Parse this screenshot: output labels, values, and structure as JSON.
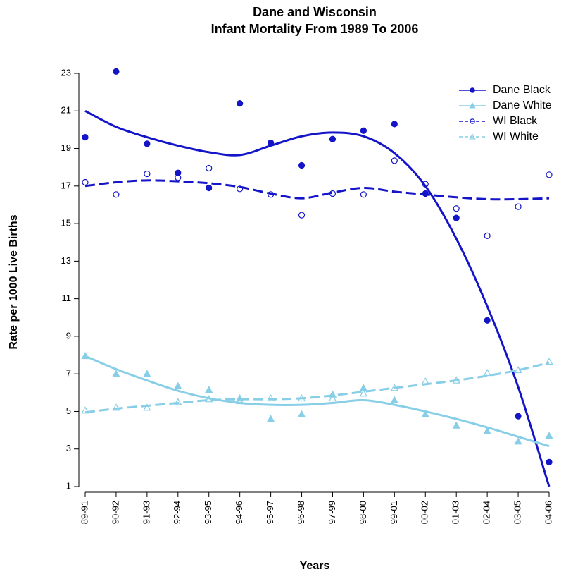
{
  "chart_data": {
    "type": "line",
    "title": [
      "Dane and Wisconsin",
      "Infant Mortality From 1989 To 2006"
    ],
    "x_label": "Years",
    "y_label": "Rate per 1000 Live Births",
    "categories": [
      "89-91",
      "90-92",
      "91-93",
      "92-94",
      "93-95",
      "94-96",
      "95-97",
      "96-98",
      "97-99",
      "98-00",
      "99-01",
      "00-02",
      "01-03",
      "02-04",
      "03-05",
      "04-06"
    ],
    "ylim": [
      1,
      23
    ],
    "yticks": [
      1,
      3,
      5,
      7,
      9,
      11,
      13,
      15,
      17,
      19,
      21,
      23
    ],
    "legend": "top-right",
    "series": [
      {
        "name": "Dane Black",
        "color": "#1414c8",
        "marker": "circle",
        "filled": true,
        "linestyle": "solid",
        "values": [
          19.6,
          23.1,
          19.25,
          17.7,
          16.9,
          21.4,
          19.3,
          18.1,
          19.5,
          19.95,
          20.3,
          16.6,
          15.3,
          9.85,
          4.75,
          2.3
        ],
        "smooth": [
          21.0,
          20.15,
          19.6,
          19.15,
          18.8,
          18.65,
          19.15,
          19.65,
          19.85,
          19.65,
          18.75,
          17.0,
          14.2,
          10.6,
          6.3,
          1.0
        ]
      },
      {
        "name": "Dane White",
        "color": "#87cee6",
        "marker": "triangle",
        "filled": true,
        "linestyle": "solid",
        "values": [
          7.95,
          7.0,
          7.0,
          6.35,
          6.15,
          5.7,
          4.6,
          4.85,
          5.9,
          6.25,
          5.6,
          4.85,
          4.25,
          3.95,
          3.4,
          3.7
        ],
        "smooth": [
          7.95,
          7.25,
          6.65,
          6.1,
          5.7,
          5.45,
          5.35,
          5.35,
          5.45,
          5.6,
          5.35,
          5.0,
          4.6,
          4.15,
          3.65,
          3.15
        ]
      },
      {
        "name": "WI Black",
        "color": "#1414c8",
        "marker": "circle",
        "filled": false,
        "linestyle": "dashed",
        "values": [
          17.2,
          16.55,
          17.65,
          17.45,
          17.95,
          16.85,
          16.55,
          15.45,
          16.6,
          16.55,
          18.35,
          17.1,
          15.8,
          14.35,
          15.9,
          17.6
        ],
        "smooth": [
          17.0,
          17.2,
          17.3,
          17.25,
          17.15,
          16.95,
          16.6,
          16.35,
          16.65,
          16.9,
          16.7,
          16.55,
          16.4,
          16.3,
          16.3,
          16.35
        ]
      },
      {
        "name": "WI White",
        "color": "#87cee6",
        "marker": "triangle",
        "filled": false,
        "linestyle": "dashed",
        "values": [
          5.05,
          5.2,
          5.2,
          5.5,
          5.65,
          5.55,
          5.7,
          5.7,
          5.7,
          5.95,
          6.25,
          6.6,
          6.65,
          7.05,
          7.2,
          7.65
        ],
        "smooth": [
          4.95,
          5.15,
          5.3,
          5.45,
          5.6,
          5.65,
          5.65,
          5.7,
          5.85,
          6.05,
          6.25,
          6.45,
          6.65,
          6.9,
          7.2,
          7.6
        ]
      }
    ]
  }
}
